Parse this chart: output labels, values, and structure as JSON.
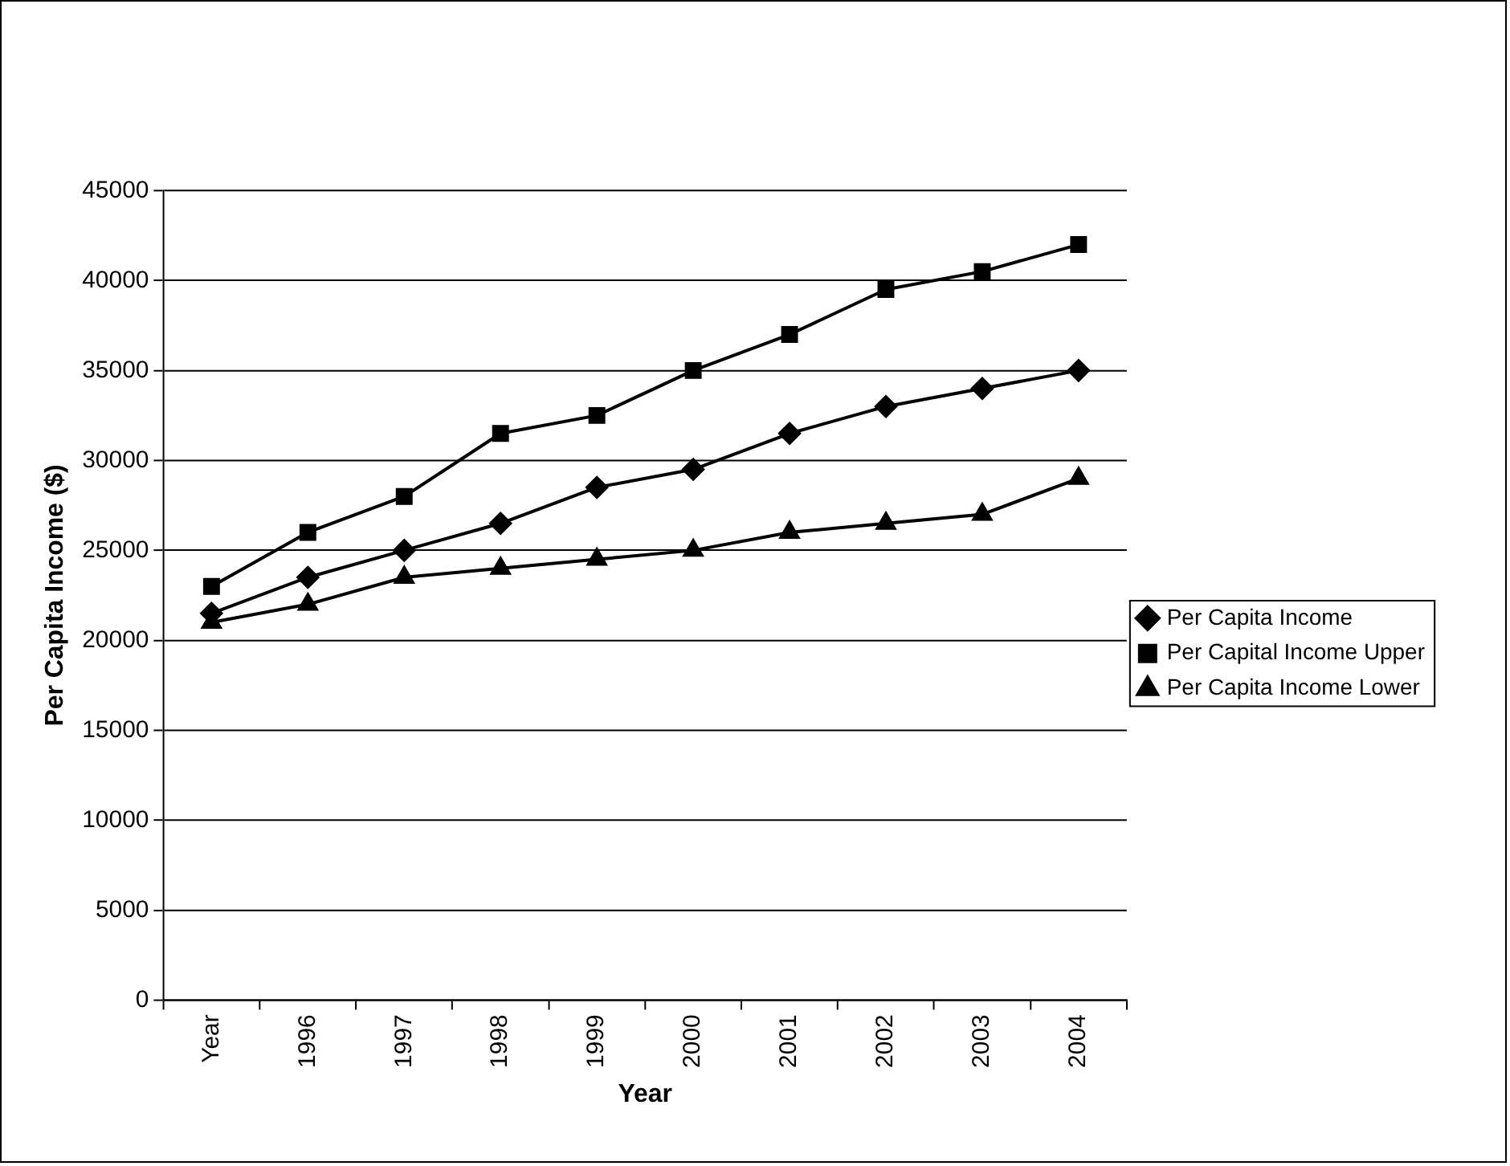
{
  "chart_data": {
    "type": "line",
    "xlabel": "Year",
    "ylabel": "Per Capita Income ($)",
    "categories": [
      "Year",
      "1996",
      "1997",
      "1998",
      "1999",
      "2000",
      "2001",
      "2002",
      "2003",
      "2004"
    ],
    "series": [
      {
        "name": "Per Capita Income",
        "color": "#000000",
        "marker": "diamond",
        "values": [
          21500,
          23500,
          25000,
          26500,
          28500,
          29500,
          31500,
          33000,
          34000,
          35000
        ]
      },
      {
        "name": "Per Capital Income Upper",
        "color": "#000000",
        "marker": "square",
        "values": [
          23000,
          26000,
          28000,
          31500,
          32500,
          35000,
          37000,
          39500,
          40500,
          42000
        ]
      },
      {
        "name": "Per Capita Income Lower",
        "color": "#000000",
        "marker": "triangle",
        "values": [
          21000,
          22000,
          23500,
          24000,
          24500,
          25000,
          26000,
          26500,
          27000,
          29000
        ]
      }
    ],
    "ylim": [
      0,
      45000
    ],
    "yticks": [
      0,
      5000,
      10000,
      15000,
      20000,
      25000,
      30000,
      35000,
      40000,
      45000
    ],
    "grid": "y",
    "legend": "right",
    "line_style": "solid"
  }
}
